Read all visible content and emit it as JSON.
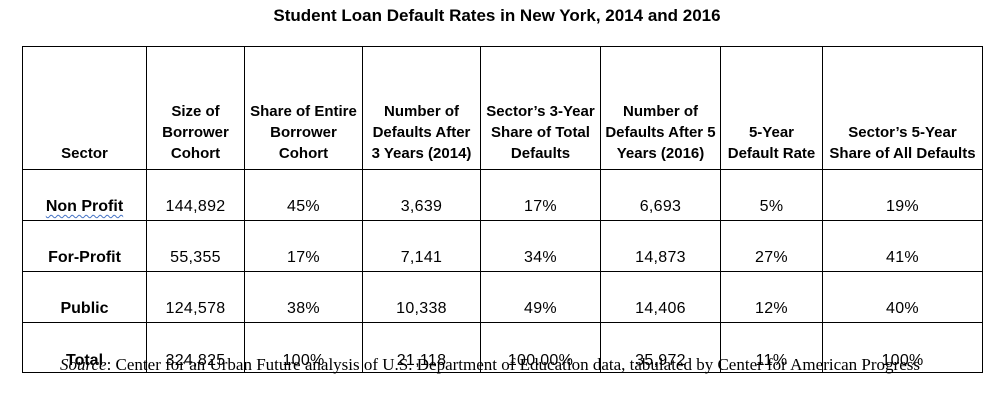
{
  "title": "Student Loan Default Rates in New York, 2014 and 2016",
  "table": {
    "headers": [
      "Sector",
      "Size of Borrower Cohort",
      "Share of Entire Borrower Cohort",
      "Number of Defaults After 3 Years (2014)",
      "Sector’s 3-Year Share of Total Defaults",
      "Number of Defaults After 5 Years (2016)",
      "5-Year Default Rate",
      "Sector’s 5-Year Share of All Defaults"
    ],
    "rows": [
      [
        "Non Profit",
        "144,892",
        "45%",
        "3,639",
        "17%",
        "6,693",
        "5%",
        "19%"
      ],
      [
        "For-Profit",
        "55,355",
        "17%",
        "7,141",
        "34%",
        "14,873",
        "27%",
        "41%"
      ],
      [
        "Public",
        "124,578",
        "38%",
        "10,338",
        "49%",
        "14,406",
        "12%",
        "40%"
      ],
      [
        "Total",
        "324,825",
        "100%",
        "21,118",
        "100.00%",
        "35,972",
        "11%",
        "100%"
      ]
    ]
  },
  "source": {
    "label": "Source",
    "text": ": Center for an Urban Future analysis of U.S. Department of Education data, tabulated by Center for American Progress"
  }
}
